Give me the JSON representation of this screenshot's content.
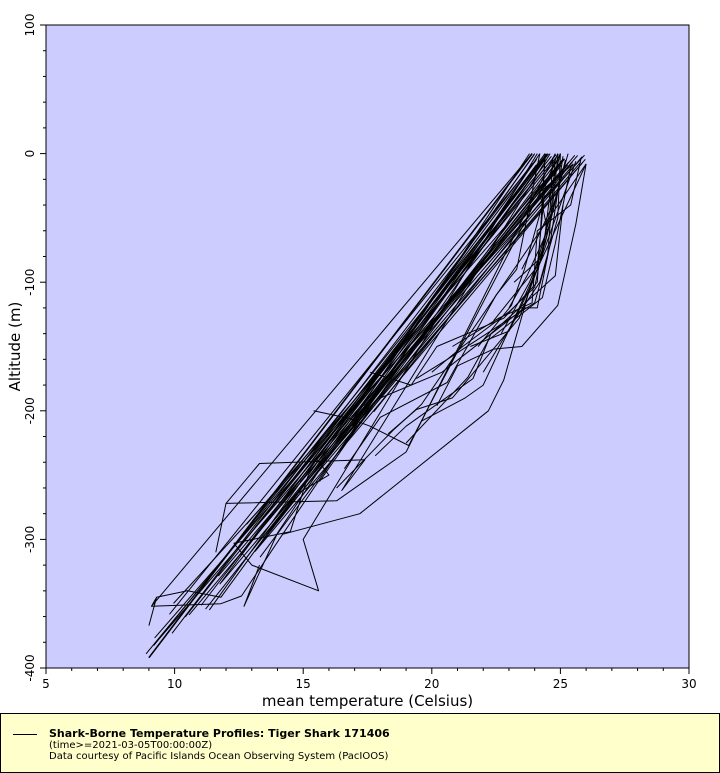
{
  "chart_data": {
    "type": "line",
    "title": "",
    "xlabel": "mean temperature (Celsius)",
    "ylabel": "Altitude (m)",
    "xlim": [
      5,
      30
    ],
    "ylim": [
      -400,
      100
    ],
    "xticks": [
      5,
      10,
      15,
      20,
      25,
      30
    ],
    "yticks": [
      -400,
      -300,
      -200,
      -100,
      0,
      100
    ],
    "grid": false,
    "legend_position": "bottom",
    "colors": {
      "plot_background": "#ccccff",
      "line": "#000000",
      "legend_background": "#ffffcc"
    },
    "series": [
      {
        "name": "Shark-Borne Temperature Profiles: Tiger Shark 171406",
        "x": [
          9.0,
          23.9
        ],
        "y": [
          -392,
          0
        ]
      },
      {
        "x": [
          9.0,
          9.3,
          9.1,
          23.9
        ],
        "y": [
          -367,
          -345,
          -352,
          0
        ]
      },
      {
        "x": [
          9.3,
          10.5,
          11.8,
          24.4
        ],
        "y": [
          -345,
          -340,
          -345,
          0
        ]
      },
      {
        "x": [
          9.1,
          11.8,
          12.6,
          14.2,
          24.2
        ],
        "y": [
          -352,
          -350,
          -344,
          -296,
          0
        ]
      },
      {
        "x": [
          14.2,
          17.2,
          22.2,
          22.8,
          25.3
        ],
        "y": [
          -296,
          -280,
          -200,
          -176,
          0
        ]
      },
      {
        "x": [
          11.6,
          12.0,
          16.3,
          19.0,
          24.8
        ],
        "y": [
          -310,
          -272,
          -270,
          -232,
          0
        ]
      },
      {
        "x": [
          12.0,
          13.3,
          17.4,
          16.5,
          24.6
        ],
        "y": [
          -272,
          -241,
          -238,
          -262,
          0
        ]
      },
      {
        "x": [
          12.3,
          13.0,
          15.6,
          15.0,
          24.1
        ],
        "y": [
          -303,
          -320,
          -340,
          -300,
          0
        ]
      },
      {
        "x": [
          12.3,
          14.5,
          15.2,
          24.0
        ],
        "y": [
          -303,
          -294,
          -250,
          0
        ]
      },
      {
        "x": [
          13.3,
          12.7,
          14.0,
          23.8
        ],
        "y": [
          -320,
          -352,
          -295,
          0
        ]
      },
      {
        "x": [
          14.8,
          16.0,
          15.5,
          24.5
        ],
        "y": [
          -264,
          -250,
          -237,
          0
        ]
      },
      {
        "x": [
          15.4,
          16.8,
          17.6,
          19.1,
          25.0
        ],
        "y": [
          -200,
          -206,
          -212,
          -227,
          0
        ]
      },
      {
        "x": [
          16.3,
          18.5,
          19.6,
          26.0
        ],
        "y": [
          -260,
          -215,
          -195,
          -8
        ]
      },
      {
        "x": [
          19.6,
          21.3,
          22.0,
          26.0
        ],
        "y": [
          -208,
          -190,
          -180,
          -8
        ]
      },
      {
        "x": [
          18.3,
          19.4,
          20.8,
          23.4,
          24.1,
          25.6
        ],
        "y": [
          -218,
          -199,
          -190,
          -128,
          -90,
          -6
        ]
      },
      {
        "x": [
          17.8,
          19.0,
          21.6,
          22.3,
          24.8,
          25.1
        ],
        "y": [
          -235,
          -212,
          -175,
          -140,
          -95,
          -40
        ]
      },
      {
        "x": [
          20.2,
          21.0,
          22.4,
          23.5,
          24.9,
          25.6,
          26.0
        ],
        "y": [
          -196,
          -165,
          -152,
          -150,
          -118,
          -55,
          -8
        ]
      },
      {
        "x": [
          19.4,
          20.6,
          22.9,
          24.0,
          24.5,
          24.8
        ],
        "y": [
          -175,
          -160,
          -130,
          -116,
          -80,
          -5
        ]
      },
      {
        "x": [
          17.6,
          19.2,
          20.2,
          22.8,
          24.1,
          24.4
        ],
        "y": [
          -170,
          -180,
          -150,
          -128,
          -100,
          -3
        ]
      },
      {
        "x": [
          16.6,
          18.0,
          20.6,
          22.5,
          23.3,
          24.2
        ],
        "y": [
          -245,
          -205,
          -178,
          -110,
          -90,
          0
        ]
      },
      {
        "x": [
          18.0,
          20.4,
          23.6,
          24.1,
          24.6,
          25.1
        ],
        "y": [
          -190,
          -170,
          -120,
          -120,
          -70,
          -2
        ]
      },
      {
        "x": [
          19.0,
          21.4,
          22.2,
          24.3,
          24.8,
          25.4
        ],
        "y": [
          -225,
          -174,
          -145,
          -112,
          -70,
          -10
        ]
      },
      {
        "x": [
          20.8,
          22.6,
          23.9,
          24.1,
          25.4,
          25.8
        ],
        "y": [
          -150,
          -128,
          -116,
          -60,
          -40,
          -4
        ]
      },
      {
        "x": [
          20.0,
          21.2,
          23.0,
          24.0,
          24.6,
          24.7
        ],
        "y": [
          -170,
          -150,
          -123,
          -104,
          -44,
          -3
        ]
      },
      {
        "x": [
          21.5,
          23.0,
          23.8,
          24.2,
          25.2
        ],
        "y": [
          -150,
          -138,
          -105,
          -85,
          -5
        ]
      },
      {
        "x": [
          22.0,
          23.2,
          24.2,
          24.9,
          25.0
        ],
        "y": [
          -170,
          -130,
          -100,
          -50,
          0
        ]
      },
      {
        "x": [
          22.7,
          23.8,
          24.4,
          25.2
        ],
        "y": [
          -140,
          -100,
          -70,
          -5
        ]
      },
      {
        "x": [
          21.8,
          23.1,
          23.6,
          24.3,
          24.4
        ],
        "y": [
          -150,
          -118,
          -90,
          -40,
          0
        ]
      },
      {
        "x": [
          23.0,
          23.7,
          24.5,
          24.2,
          25.5
        ],
        "y": [
          -120,
          -95,
          -60,
          -30,
          -8
        ]
      },
      {
        "x": [
          22.4,
          23.2,
          24.1,
          24.4,
          24.9
        ],
        "y": [
          -130,
          -110,
          -88,
          -26,
          0
        ]
      },
      {
        "x": [
          23.5,
          24.0,
          24.7,
          24.9
        ],
        "y": [
          -90,
          -70,
          -40,
          -2
        ]
      },
      {
        "x": [
          23.2,
          24.3,
          24.6,
          25.0
        ],
        "y": [
          -100,
          -80,
          -30,
          0
        ]
      }
    ],
    "extra_bundle": {
      "count": 34,
      "start_x": 9.0,
      "start_x_spread": 8.5,
      "start_y": -392,
      "start_y_spread": 190,
      "end_x": 23.9,
      "end_x_spread": 2.1,
      "end_y": 0,
      "end_y_spread": 10
    }
  },
  "legend": {
    "title": "Shark-Borne Temperature Profiles: Tiger Shark 171406",
    "constraint": "(time>=2021-03-05T00:00:00Z)",
    "credit": "Data courtesy of Pacific Islands Ocean Observing System (PacIOOS)"
  }
}
